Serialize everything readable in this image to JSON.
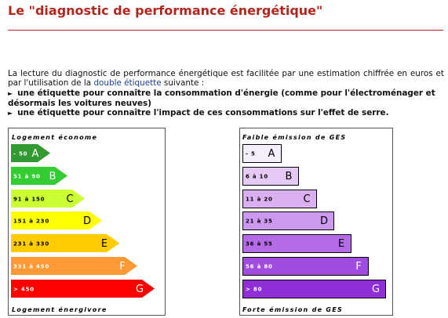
{
  "header": {
    "title": "Le \"diagnostic de performance énergétique\""
  },
  "intro": {
    "before": "La lecture du diagnostic de performance énergétique est facilitée par une estimation chiffrée en euros et par l'utilisation de la ",
    "link": "double étiquette",
    "after": " suivante :"
  },
  "bullets": [
    "une étiquette pour connaître la consommation d'énergie (comme pour l'électroménager et désormais les voitures neuves)",
    "une étiquette pour connaître l'impact de ces consommations sur l'effet de serre."
  ],
  "energy_label": {
    "top": "Logement économe",
    "bottom": "Logement énergivore",
    "classes": [
      {
        "range": "- 50",
        "letter": "A"
      },
      {
        "range": "51 à 90",
        "letter": "B"
      },
      {
        "range": "91 à 150",
        "letter": "C"
      },
      {
        "range": "151 à 230",
        "letter": "D"
      },
      {
        "range": "231 à 330",
        "letter": "E"
      },
      {
        "range": "331 à 450",
        "letter": "F"
      },
      {
        "range": "> 450",
        "letter": "G"
      }
    ]
  },
  "ges_label": {
    "top": "Faible émission de GES",
    "bottom": "Forte émission de GES",
    "classes": [
      {
        "range": "- 5",
        "letter": "A"
      },
      {
        "range": "6 à 10",
        "letter": "B"
      },
      {
        "range": "11 à 20",
        "letter": "C"
      },
      {
        "range": "21 à 35",
        "letter": "D"
      },
      {
        "range": "36 à 55",
        "letter": "E"
      },
      {
        "range": "56 à 80",
        "letter": "F"
      },
      {
        "range": "> 80",
        "letter": "G"
      }
    ]
  }
}
